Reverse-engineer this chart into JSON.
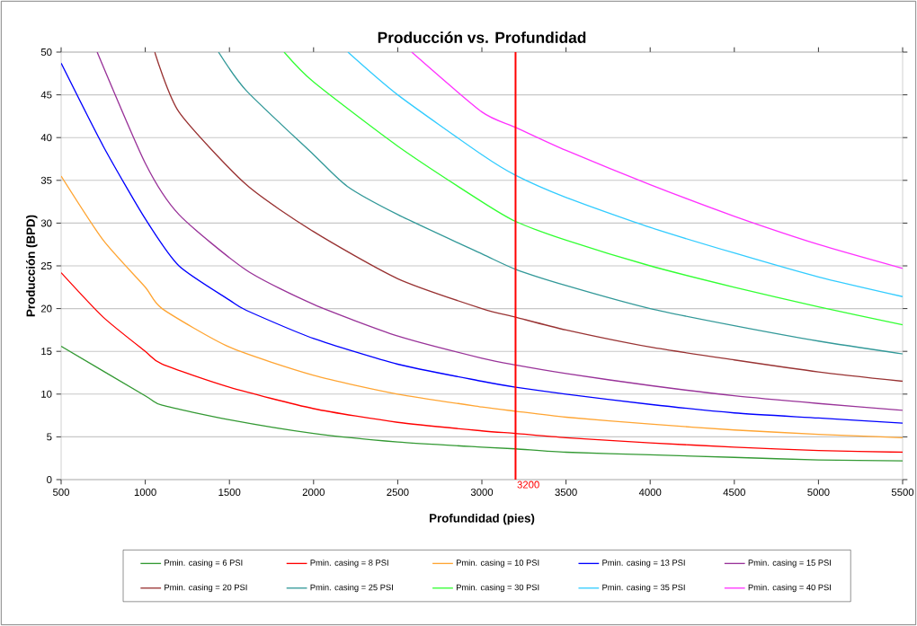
{
  "chart_data": {
    "type": "line",
    "title": "Producción vs. Profundidad",
    "xlabel": "Profundidad (pies)",
    "ylabel": "Producción (BPD)",
    "xlim": [
      500,
      5500
    ],
    "xticks": [
      500,
      1000,
      1500,
      2000,
      2500,
      3000,
      3500,
      4000,
      4500,
      5000,
      5500
    ],
    "ylim": [
      0,
      50
    ],
    "yticks": [
      0,
      5,
      10,
      15,
      20,
      25,
      30,
      35,
      40,
      45,
      50
    ],
    "grid": "y",
    "legend": "bottom",
    "marker": "none",
    "line_style": "solid",
    "ref_lines": [
      {
        "axis": "x",
        "value": 3200,
        "label": "3200",
        "color": "#ff0000"
      }
    ],
    "series": [
      {
        "name": "Pmin. casing = 6 PSI",
        "color": "#339933",
        "x": [
          500,
          1000,
          1100,
          1500,
          2000,
          2500,
          3000,
          3200,
          3500,
          4000,
          4500,
          5000,
          5500
        ],
        "values": [
          15.6,
          9.8,
          8.7,
          7.0,
          5.4,
          4.4,
          3.8,
          3.6,
          3.2,
          2.9,
          2.6,
          2.3,
          2.2
        ]
      },
      {
        "name": "Pmin. casing = 8 PSI",
        "color": "#ff0000",
        "x": [
          500,
          750,
          1000,
          1100,
          1500,
          2000,
          2500,
          3000,
          3200,
          3500,
          4000,
          4500,
          5000,
          5500
        ],
        "values": [
          24.2,
          19,
          15,
          13.5,
          10.8,
          8.3,
          6.7,
          5.7,
          5.4,
          4.9,
          4.3,
          3.8,
          3.4,
          3.2
        ]
      },
      {
        "name": "Pmin. casing = 10 PSI",
        "color": "#ffa533",
        "x": [
          500,
          750,
          1000,
          1100,
          1500,
          2000,
          2500,
          3000,
          3200,
          3500,
          4000,
          4500,
          5000,
          5500
        ],
        "values": [
          35.5,
          28,
          22.5,
          20,
          15.5,
          12.2,
          10,
          8.5,
          8,
          7.3,
          6.5,
          5.8,
          5.3,
          4.9
        ]
      },
      {
        "name": "Pmin. casing = 13 PSI",
        "color": "#0000ff",
        "x": [
          500,
          750,
          1000,
          1200,
          1500,
          1600,
          2000,
          2500,
          3000,
          3200,
          3500,
          4000,
          4500,
          5000,
          5500
        ],
        "values": [
          48.7,
          39,
          30.5,
          25,
          21,
          19.8,
          16.5,
          13.5,
          11.5,
          10.8,
          10,
          8.8,
          7.8,
          7.2,
          6.6
        ]
      },
      {
        "name": "Pmin. casing = 15 PSI",
        "color": "#993399",
        "x": [
          714,
          1000,
          1200,
          1600,
          2000,
          2500,
          3000,
          3200,
          3500,
          4000,
          4500,
          5000,
          5500
        ],
        "values": [
          50,
          37,
          31,
          24.5,
          20.5,
          16.8,
          14.2,
          13.4,
          12.4,
          11,
          9.8,
          8.9,
          8.1
        ]
      },
      {
        "name": "Pmin. casing = 20 PSI",
        "color": "#993333",
        "x": [
          1056,
          1200,
          1600,
          2000,
          2500,
          3000,
          3200,
          3500,
          4000,
          4500,
          5000,
          5500
        ],
        "values": [
          50,
          43,
          34.5,
          29,
          23.5,
          20,
          19,
          17.5,
          15.5,
          14,
          12.6,
          11.5
        ]
      },
      {
        "name": "Pmin. casing = 25 PSI",
        "color": "#339999",
        "x": [
          1435,
          1600,
          2000,
          2200,
          2500,
          3000,
          3200,
          3500,
          4000,
          4500,
          5000,
          5500
        ],
        "values": [
          50,
          45.5,
          38,
          34.3,
          31,
          26.4,
          24.6,
          22.7,
          20,
          18,
          16.2,
          14.7
        ]
      },
      {
        "name": "Pmin. casing = 30 PSI",
        "color": "#33ff33",
        "x": [
          1825,
          2000,
          2500,
          3000,
          3200,
          3500,
          4000,
          4500,
          5000,
          5500
        ],
        "values": [
          50,
          46.5,
          39,
          32.5,
          30.2,
          28,
          25,
          22.5,
          20.2,
          18.1
        ]
      },
      {
        "name": "Pmin. casing = 35 PSI",
        "color": "#33ccff",
        "x": [
          2204,
          2500,
          3000,
          3200,
          3500,
          4000,
          4500,
          5000,
          5500
        ],
        "values": [
          50,
          45,
          38,
          35.6,
          33,
          29.5,
          26.5,
          23.7,
          21.4
        ]
      },
      {
        "name": "Pmin. casing = 40 PSI",
        "color": "#ff33ff",
        "x": [
          2583,
          3000,
          3200,
          3500,
          4000,
          4500,
          5000,
          5500
        ],
        "values": [
          50,
          43,
          41.2,
          38.5,
          34.5,
          30.8,
          27.5,
          24.7
        ]
      }
    ]
  }
}
